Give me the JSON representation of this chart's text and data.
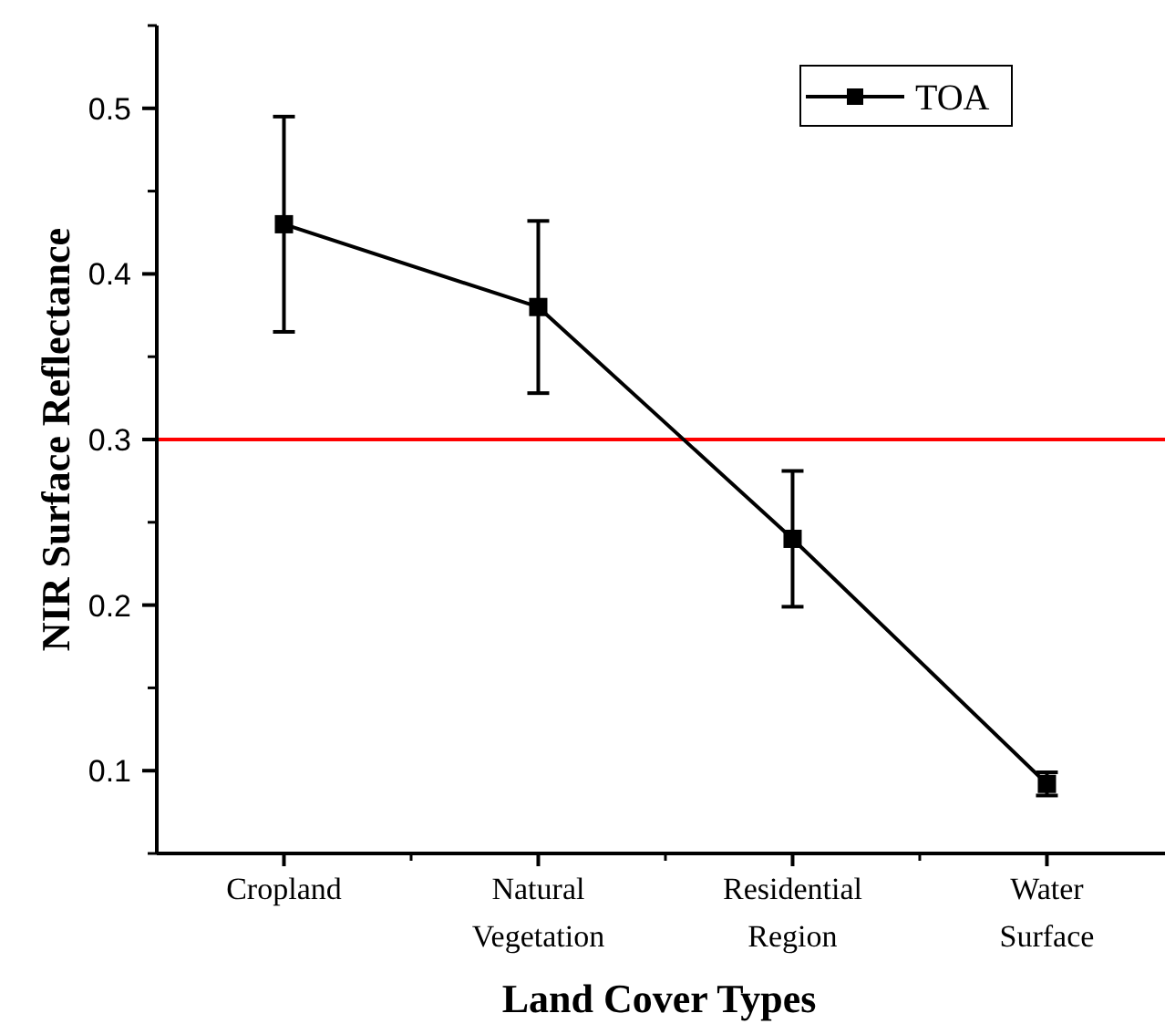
{
  "chart_data": {
    "type": "line",
    "xlabel": "Land Cover Types",
    "ylabel": "NIR Surface Reflectance",
    "categories": [
      "Cropland",
      "Natural Vegetation",
      "Residential Region",
      "Water Surface"
    ],
    "series": [
      {
        "name": "TOA",
        "color": "#000000",
        "values": [
          0.43,
          0.38,
          0.24,
          0.092
        ],
        "errors": [
          0.065,
          0.052,
          0.041,
          0.007
        ]
      }
    ],
    "ylim": [
      0.05,
      0.55
    ],
    "yticks": [
      0.1,
      0.2,
      0.3,
      0.4,
      0.5
    ],
    "ref_lines": [
      {
        "axis": "y",
        "value": 0.3,
        "color": "#ff0000"
      }
    ],
    "legend": "top right",
    "marker": "square",
    "line_style": "solid",
    "grid": false
  }
}
